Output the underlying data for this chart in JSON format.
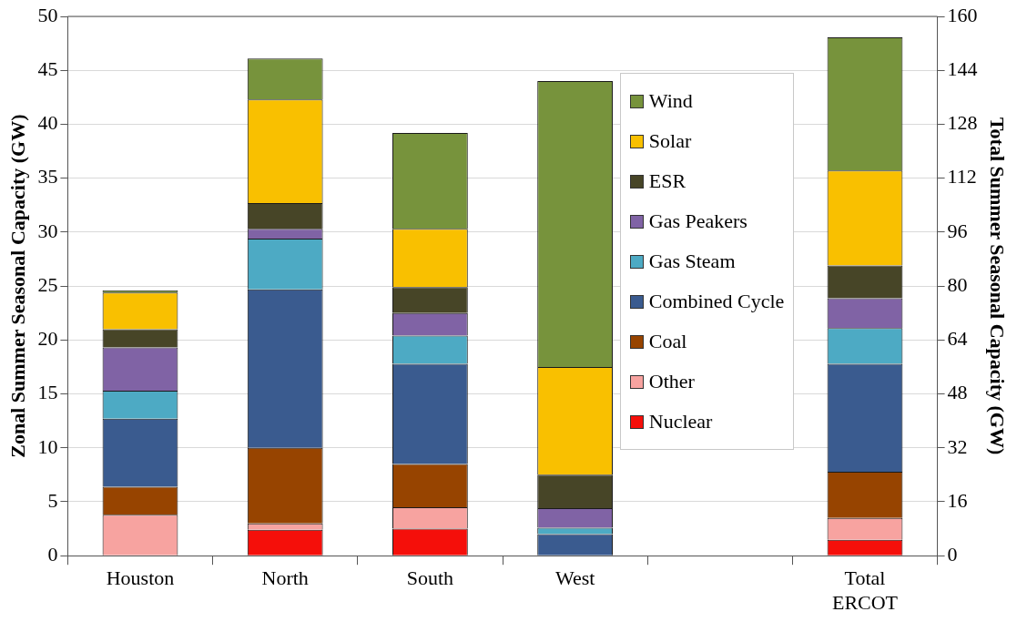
{
  "chart_data": {
    "type": "bar",
    "stacked": true,
    "categories": [
      "Houston",
      "North",
      "South",
      "West",
      null,
      "Total ERCOT"
    ],
    "ylabel": "Zonal Summer Seasonal Capacity (GW)",
    "y2label": "Total Summer Seasonal Capacity (GW)",
    "ylim": [
      0,
      50
    ],
    "yticks": [
      0,
      5,
      10,
      15,
      20,
      25,
      30,
      35,
      40,
      45,
      50
    ],
    "y2lim": [
      0,
      160
    ],
    "y2ticks": [
      0,
      16,
      32,
      48,
      64,
      80,
      96,
      112,
      128,
      144,
      160
    ],
    "grid": "y",
    "legend": "right",
    "series": [
      {
        "name": "Nuclear",
        "color": "#f50f0a",
        "values": [
          0,
          2.4,
          2.5,
          0,
          null,
          null
        ]
      },
      {
        "name": "Other",
        "color": "#f7a3a0",
        "values": [
          3.8,
          0.6,
          2.0,
          0,
          null,
          null
        ]
      },
      {
        "name": "Coal",
        "color": "#974400",
        "values": [
          2.6,
          7.0,
          4.0,
          0,
          null,
          null
        ]
      },
      {
        "name": "Combined Cycle",
        "color": "#3a5b8f",
        "values": [
          6.3,
          14.7,
          9.3,
          2.0,
          null,
          null
        ]
      },
      {
        "name": "Gas Steam",
        "color": "#4daac4",
        "values": [
          2.6,
          4.7,
          2.6,
          0.6,
          null,
          null
        ]
      },
      {
        "name": "Gas Peakers",
        "color": "#8063a5",
        "values": [
          4.0,
          0.9,
          2.1,
          1.8,
          null,
          null
        ]
      },
      {
        "name": "ESR",
        "color": "#474527",
        "values": [
          1.7,
          2.4,
          2.4,
          3.1,
          null,
          null
        ]
      },
      {
        "name": "Solar",
        "color": "#f9c000",
        "values": [
          3.4,
          9.6,
          5.4,
          10.0,
          null,
          null
        ]
      },
      {
        "name": "Wind",
        "color": "#77933c",
        "values": [
          0.2,
          3.8,
          8.9,
          26.5,
          null,
          null
        ]
      },
      {
        "color": "#f50f0a",
        "axis": "y2",
        "values": [
          null,
          null,
          null,
          null,
          null,
          4.7
        ]
      },
      {
        "color": "#f7a3a0",
        "axis": "y2",
        "values": [
          null,
          null,
          null,
          null,
          null,
          6.5
        ]
      },
      {
        "color": "#974400",
        "axis": "y2",
        "values": [
          null,
          null,
          null,
          null,
          null,
          13.7
        ]
      },
      {
        "color": "#3a5b8f",
        "axis": "y2",
        "values": [
          null,
          null,
          null,
          null,
          null,
          32.0
        ]
      },
      {
        "color": "#4daac4",
        "axis": "y2",
        "values": [
          null,
          null,
          null,
          null,
          null,
          10.6
        ]
      },
      {
        "color": "#8063a5",
        "axis": "y2",
        "values": [
          null,
          null,
          null,
          null,
          null,
          8.9
        ]
      },
      {
        "color": "#474527",
        "axis": "y2",
        "values": [
          null,
          null,
          null,
          null,
          null,
          9.7
        ]
      },
      {
        "color": "#f9c000",
        "axis": "y2",
        "values": [
          null,
          null,
          null,
          null,
          null,
          28.2
        ]
      },
      {
        "color": "#77933c",
        "axis": "y2",
        "values": [
          null,
          null,
          null,
          null,
          null,
          39.5
        ]
      }
    ]
  }
}
